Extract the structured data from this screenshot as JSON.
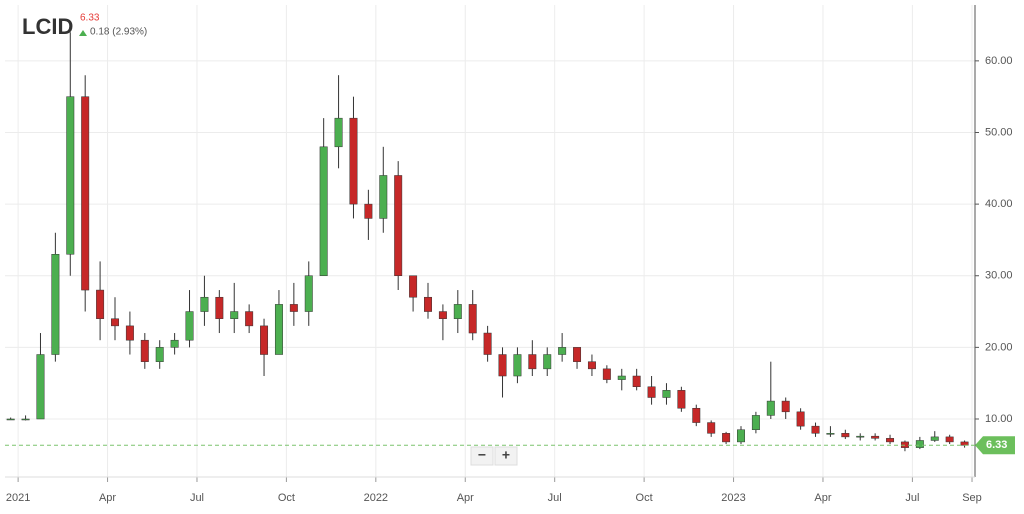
{
  "chart_data": {
    "type": "candlestick",
    "title": "LCID",
    "last_price": 6.33,
    "change": "0.18 (2.93%)",
    "zoom_controls": [
      "−",
      "+"
    ],
    "up_color": "#4caf50",
    "down_color": "#c62828",
    "wick_color": "#333333",
    "grid": true,
    "xlim": [
      -0.44,
      32.1
    ],
    "xticks": [
      {
        "value": 0,
        "label": "2021"
      },
      {
        "value": 3,
        "label": "Apr"
      },
      {
        "value": 6,
        "label": "Jul"
      },
      {
        "value": 9,
        "label": "Oct"
      },
      {
        "value": 12,
        "label": "2022"
      },
      {
        "value": 15,
        "label": "Apr"
      },
      {
        "value": 18,
        "label": "Jul"
      },
      {
        "value": 21,
        "label": "Oct"
      },
      {
        "value": 24,
        "label": "2023"
      },
      {
        "value": 27,
        "label": "Apr"
      },
      {
        "value": 30,
        "label": "Jul"
      },
      {
        "value": 32,
        "label": "Sep"
      }
    ],
    "ylim": [
      1.9,
      67.8
    ],
    "yticks": [
      {
        "value": 10,
        "label": "10.00"
      },
      {
        "value": 20,
        "label": "20.00"
      },
      {
        "value": 30,
        "label": "30.00"
      },
      {
        "value": 40,
        "label": "40.00"
      },
      {
        "value": 50,
        "label": "50.00"
      },
      {
        "value": 60,
        "label": "60.00"
      }
    ],
    "x": [
      -0.25,
      0.25,
      0.75,
      1.25,
      1.75,
      2.25,
      2.75,
      3.25,
      3.75,
      4.25,
      4.75,
      5.25,
      5.75,
      6.25,
      6.75,
      7.25,
      7.75,
      8.25,
      8.75,
      9.25,
      9.75,
      10.25,
      10.75,
      11.25,
      11.75,
      12.25,
      12.75,
      13.25,
      13.75,
      14.25,
      14.75,
      15.25,
      15.75,
      16.25,
      16.75,
      17.25,
      17.75,
      18.25,
      18.75,
      19.25,
      19.75,
      20.25,
      20.75,
      21.25,
      21.75,
      22.25,
      22.75,
      23.25,
      23.75,
      24.25,
      24.75,
      25.25,
      25.75,
      26.25,
      26.75,
      27.25,
      27.75,
      28.25,
      28.75,
      29.25,
      29.75,
      30.25,
      30.75,
      31.25,
      31.75
    ],
    "open": [
      10,
      10,
      10,
      19,
      33,
      55,
      28,
      24,
      23,
      21,
      18,
      20,
      21,
      25,
      27,
      24,
      25,
      23,
      19,
      26,
      25,
      30,
      48,
      52,
      40,
      38,
      44,
      30,
      27,
      25,
      24,
      26,
      22,
      19,
      16,
      19,
      17,
      19,
      20,
      18,
      17,
      15.5,
      16,
      14.5,
      13,
      14,
      11.5,
      9.5,
      8,
      6.8,
      8.5,
      10.5,
      12.5,
      11,
      9,
      8,
      8,
      7.5,
      7.6,
      7.3,
      6.8,
      6,
      7,
      7.5,
      6.8
    ],
    "high": [
      10.2,
      10.5,
      22,
      36,
      64,
      58,
      32,
      27,
      25,
      22,
      21,
      22,
      28,
      30,
      28,
      29,
      26,
      24,
      28,
      29,
      32,
      52,
      58,
      55,
      42,
      48,
      46,
      30,
      29,
      26,
      28,
      28,
      23,
      20,
      20,
      21,
      20,
      22,
      20,
      19,
      17.5,
      17,
      17,
      16,
      15,
      14.5,
      12,
      9.8,
      8.2,
      9,
      11,
      18,
      13,
      11.5,
      9.5,
      9,
      8.5,
      8,
      8,
      7.8,
      7,
      7.5,
      8.3,
      7.8,
      7
    ],
    "low": [
      9.9,
      9.8,
      10,
      18,
      30,
      25,
      21,
      21,
      19,
      17,
      17,
      19,
      20,
      23,
      22,
      22,
      22,
      16,
      19,
      23,
      23,
      30,
      45,
      38,
      35,
      36,
      28,
      25,
      24,
      21,
      22,
      21,
      18,
      13,
      15,
      16,
      16,
      18,
      17,
      16,
      15,
      14,
      14,
      12,
      12,
      11,
      9,
      7.5,
      6.5,
      6.5,
      8,
      10,
      10,
      8.5,
      7.5,
      7.5,
      7.2,
      7,
      7,
      6.5,
      5.5,
      5.8,
      6.8,
      6.5,
      6
    ],
    "close": [
      10,
      10,
      19,
      33,
      55,
      28,
      24,
      23,
      21,
      18,
      20,
      21,
      25,
      27,
      24,
      25,
      23,
      19,
      26,
      25,
      30,
      48,
      52,
      40,
      38,
      44,
      30,
      27,
      25,
      24,
      26,
      22,
      19,
      16,
      19,
      17,
      19,
      20,
      18,
      17,
      15.5,
      16,
      14.5,
      13,
      14,
      11.5,
      9.5,
      8,
      6.8,
      8.5,
      10.5,
      12.5,
      11,
      9,
      8,
      8,
      7.5,
      7.6,
      7.3,
      6.8,
      6,
      7,
      7.5,
      6.8,
      6.33
    ]
  }
}
